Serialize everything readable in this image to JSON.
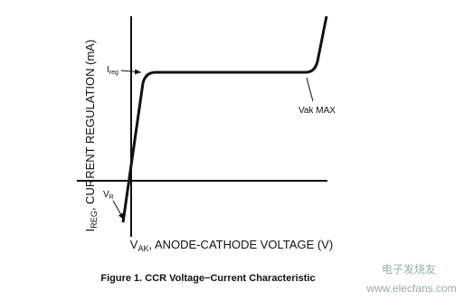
{
  "y_axis_label": {
    "main": "I",
    "sub": "REG",
    "rest": ", CURRENT REGULATION (mA)"
  },
  "x_axis_label": {
    "main": "V",
    "sub": "AK",
    "rest": ", ANODE-CATHODE VOLTAGE (V)"
  },
  "annotations": {
    "ireg": {
      "main": "I",
      "sub": "reg"
    },
    "vak_max": "Vak MAX",
    "vr": {
      "main": "V",
      "sub": "R"
    }
  },
  "caption": "Figure 1. CCR Voltage−Current Characteristic",
  "watermark": {
    "brand": "电子发烧友",
    "url": "www.elecfans.com"
  }
}
